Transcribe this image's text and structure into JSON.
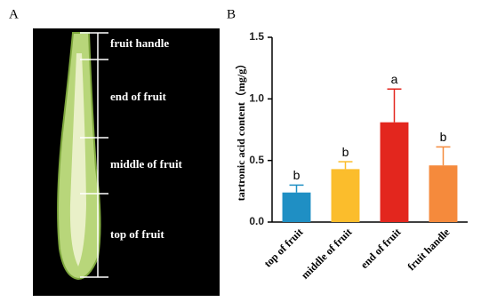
{
  "panel_labels": [
    "A",
    "B"
  ],
  "photo_labels": [
    "fruit handle",
    "end of fruit",
    "middle of fruit",
    "top of fruit"
  ],
  "chart_data": {
    "type": "bar",
    "y_label": "tartronic acid content（mg/g）",
    "categories": [
      "top of fruit",
      "middle of fruit",
      "end of fruit",
      "fruit handle"
    ],
    "values": [
      0.24,
      0.43,
      0.81,
      0.46
    ],
    "errors": [
      0.06,
      0.06,
      0.27,
      0.15
    ],
    "annotations": [
      "b",
      "b",
      "a",
      "b"
    ],
    "colors": [
      "#1f8fc4",
      "#fbbd2c",
      "#e3261e",
      "#f58a3c"
    ],
    "ylim": [
      0,
      1.5
    ],
    "yticks": [
      {
        "value": 0,
        "label": "0.0"
      },
      0.5,
      {
        "value": 1,
        "label": "1.0"
      },
      1.5
    ]
  }
}
